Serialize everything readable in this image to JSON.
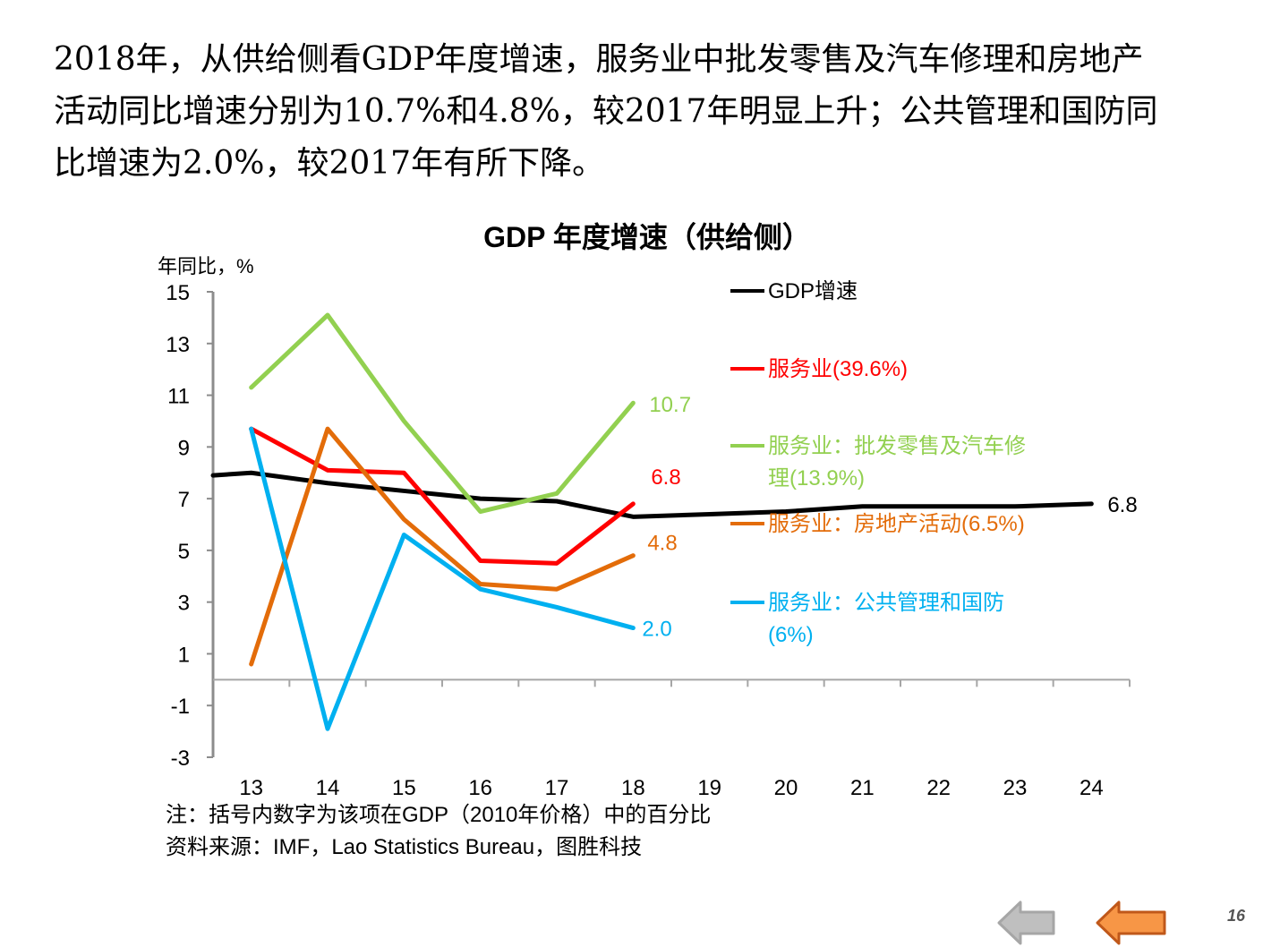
{
  "intro": {
    "lines": [
      "2018年，从供给侧看GDP年度增速，服务业中批发零售及汽车修理和房地产",
      "活动同比增速分别为10.7%和4.8%，较2017年明显上升；公共管理和国防同",
      "比增速为2.0%，较2017年有所下降。"
    ]
  },
  "chart_data": {
    "type": "line",
    "title": "GDP 年度增速（供给侧）",
    "xlabel": "",
    "ylabel": "年同比，%",
    "x": [
      "13",
      "14",
      "15",
      "16",
      "17",
      "18",
      "19",
      "20",
      "21",
      "22",
      "23",
      "24"
    ],
    "ylim": [
      -3,
      15
    ],
    "yticks": [
      15,
      13,
      11,
      9,
      7,
      5,
      3,
      1,
      -1,
      -3
    ],
    "grid": false,
    "legend_position": "right",
    "series": [
      {
        "name": "GDP增速",
        "color": "#000000",
        "start_value": 7.9,
        "values": [
          8.0,
          7.6,
          7.3,
          7.0,
          6.9,
          6.3,
          6.4,
          6.5,
          6.7,
          6.7,
          6.7,
          6.8
        ],
        "end_label": "6.8"
      },
      {
        "name": "服务业(39.6%)",
        "color": "#ff0000",
        "values": [
          9.7,
          8.1,
          8.0,
          4.6,
          4.5,
          6.8,
          null,
          null,
          null,
          null,
          null,
          null
        ],
        "end_label": "6.8"
      },
      {
        "name": "服务业：批发零售及汽车修理(13.9%)",
        "legend_lines": [
          "服务业：批发零售及汽车修",
          "理(13.9%)"
        ],
        "color": "#92d050",
        "values": [
          11.3,
          14.1,
          10.0,
          6.5,
          7.2,
          10.7,
          null,
          null,
          null,
          null,
          null,
          null
        ],
        "end_label": "10.7"
      },
      {
        "name": "服务业：房地产活动(6.5%)",
        "color": "#e36c09",
        "values": [
          0.6,
          9.7,
          6.2,
          3.7,
          3.5,
          4.8,
          null,
          null,
          null,
          null,
          null,
          null
        ],
        "end_label": "4.8"
      },
      {
        "name": "服务业：公共管理和国防(6%)",
        "legend_lines": [
          "服务业：公共管理和国防",
          "(6%)"
        ],
        "color": "#00b0f0",
        "values": [
          9.7,
          -1.9,
          5.6,
          3.5,
          2.8,
          2.0,
          null,
          null,
          null,
          null,
          null,
          null
        ],
        "end_label": "2.0"
      }
    ]
  },
  "notes": {
    "note": "注：括号内数字为该项在GDP（2010年价格）中的百分比",
    "source": "资料来源：IMF，Lao Statistics Bureau，图胜科技"
  },
  "nav": {
    "prev_icon": "left-arrow-gray-icon",
    "back_icon": "left-arrow-orange-icon",
    "page_number": "16",
    "colors": {
      "gray": "#a6a6a6",
      "orange": "#f79646"
    }
  }
}
